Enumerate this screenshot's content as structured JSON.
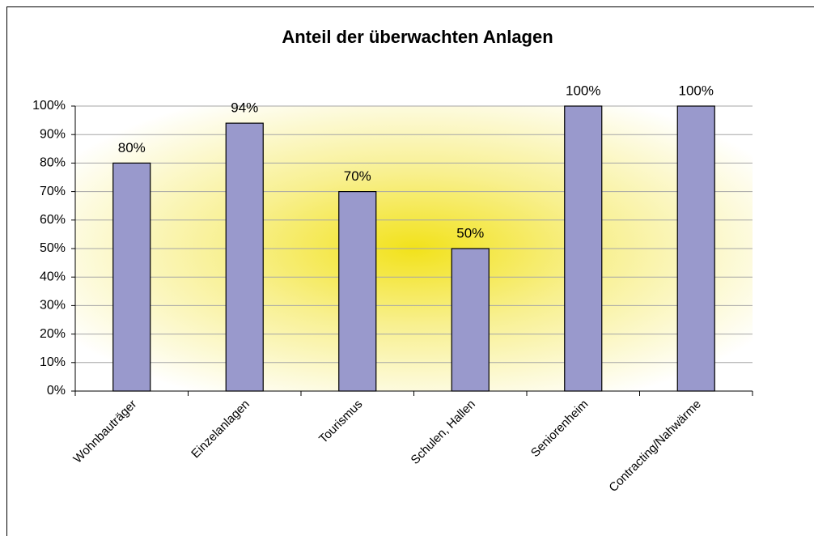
{
  "chart_data": {
    "type": "bar",
    "title": "Anteil der überwachten Anlagen",
    "categories": [
      "Wohnbauträger",
      "Einzelanlagen",
      "Tourismus",
      "Schulen, Hallen",
      "Seniorenheim",
      "Contracting/Nahwärme"
    ],
    "values": [
      80,
      94,
      70,
      50,
      100,
      100
    ],
    "value_labels": [
      "80%",
      "94%",
      "70%",
      "50%",
      "100%",
      "100%"
    ],
    "color": "#9999cc",
    "ylim": [
      0,
      100
    ],
    "yticks": [
      {
        "value": 0,
        "label": "0%"
      },
      {
        "value": 10,
        "label": "10%"
      },
      {
        "value": 20,
        "label": "20%"
      },
      {
        "value": 30,
        "label": "30%"
      },
      {
        "value": 40,
        "label": "40%"
      },
      {
        "value": 50,
        "label": "50%"
      },
      {
        "value": 60,
        "label": "60%"
      },
      {
        "value": 70,
        "label": "70%"
      },
      {
        "value": 80,
        "label": "80%"
      },
      {
        "value": 90,
        "label": "90%"
      },
      {
        "value": 100,
        "label": "100%"
      }
    ],
    "grid": true
  }
}
